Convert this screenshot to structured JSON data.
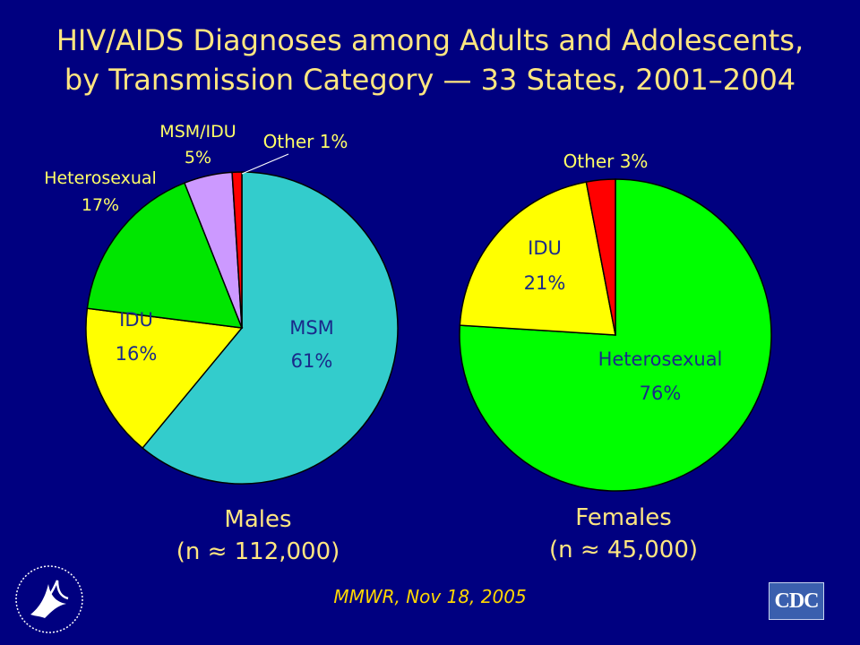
{
  "title": {
    "line1": "HIV/AIDS Diagnoses among Adults and Adolescents,",
    "line2": "by Transmission Category — 33 States, 2001–2004"
  },
  "chart_data": [
    {
      "type": "pie",
      "name": "Males",
      "caption": "Males",
      "subcaption": "(n ≈ 112,000)",
      "slices": [
        {
          "label": "MSM",
          "value": 61,
          "value_text": "61%",
          "color": "#33cccc"
        },
        {
          "label": "IDU",
          "value": 16,
          "value_text": "16%",
          "color": "#ffff00"
        },
        {
          "label": "Heterosexual",
          "value": 17,
          "value_text": "17%",
          "color": "#00e600"
        },
        {
          "label": "MSM/IDU",
          "value": 5,
          "value_text": "5%",
          "color": "#cc99ff"
        },
        {
          "label": "Other",
          "value": 1,
          "value_text": "1%",
          "color": "#ff0000"
        }
      ]
    },
    {
      "type": "pie",
      "name": "Females",
      "caption": "Females",
      "subcaption": "(n ≈ 45,000)",
      "slices": [
        {
          "label": "Heterosexual",
          "value": 76,
          "value_text": "76%",
          "color": "#00ff00"
        },
        {
          "label": "IDU",
          "value": 21,
          "value_text": "21%",
          "color": "#ffff00"
        },
        {
          "label": "Other",
          "value": 3,
          "value_text": "3%",
          "color": "#ff0000"
        }
      ]
    }
  ],
  "labels": {
    "male_msm": "MSM",
    "male_msm_pct": "61%",
    "male_idu": "IDU",
    "male_idu_pct": "16%",
    "male_het": "Heterosexual",
    "male_het_pct": "17%",
    "male_msmidu": "MSM/IDU",
    "male_msmidu_pct": "5%",
    "male_other": "Other 1%",
    "female_idu": "IDU",
    "female_idu_pct": "21%",
    "female_het": "Heterosexual",
    "female_het_pct": "76%",
    "female_other": "Other 3%"
  },
  "source": "MMWR, Nov 18, 2005",
  "logos": {
    "left": "hhs-eagle-icon",
    "right_text": "CDC"
  },
  "colors": {
    "background": "#000080",
    "title": "#ffe680",
    "male_label": "#000080",
    "female_label": "#000080"
  }
}
